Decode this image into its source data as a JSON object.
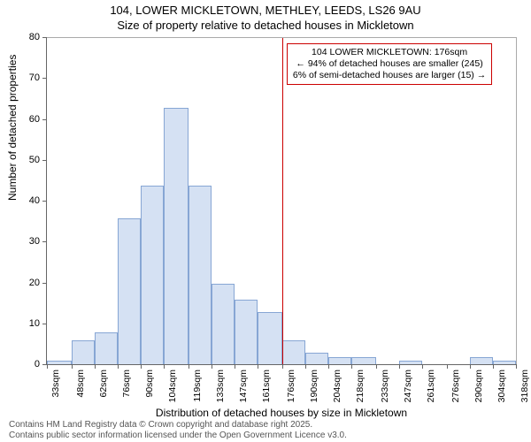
{
  "title_line1": "104, LOWER MICKLETOWN, METHLEY, LEEDS, LS26 9AU",
  "title_line2": "Size of property relative to detached houses in Mickletown",
  "y_axis_title": "Number of detached properties",
  "x_axis_title": "Distribution of detached houses by size in Mickletown",
  "chart": {
    "type": "histogram",
    "x_unit": "sqm",
    "y_axis": {
      "min": 0,
      "max": 80,
      "tick_step": 10,
      "ticks": [
        0,
        10,
        20,
        30,
        40,
        50,
        60,
        70,
        80
      ]
    },
    "x_ticks": [
      33,
      48,
      62,
      76,
      90,
      104,
      119,
      133,
      147,
      161,
      176,
      190,
      204,
      218,
      233,
      247,
      261,
      276,
      290,
      304,
      318
    ],
    "values": [
      1,
      6,
      8,
      36,
      44,
      63,
      44,
      20,
      16,
      13,
      6,
      3,
      2,
      2,
      0,
      1,
      0,
      0,
      2,
      1,
      0
    ],
    "bar_fill": "#d5e1f3",
    "bar_stroke": "#87a6d4",
    "background": "#ffffff",
    "axis_color": "#666666",
    "border_color": "#aaaaaa"
  },
  "marker": {
    "position_value": 176,
    "line_color": "#cc0000",
    "box_border_color": "#cc0000",
    "line1": "104 LOWER MICKLETOWN: 176sqm",
    "line2": "← 94% of detached houses are smaller (245)",
    "line3": "6% of semi-detached houses are larger (15) →"
  },
  "footer_line1": "Contains HM Land Registry data © Crown copyright and database right 2025.",
  "footer_line2": "Contains public sector information licensed under the Open Government Licence v3.0."
}
